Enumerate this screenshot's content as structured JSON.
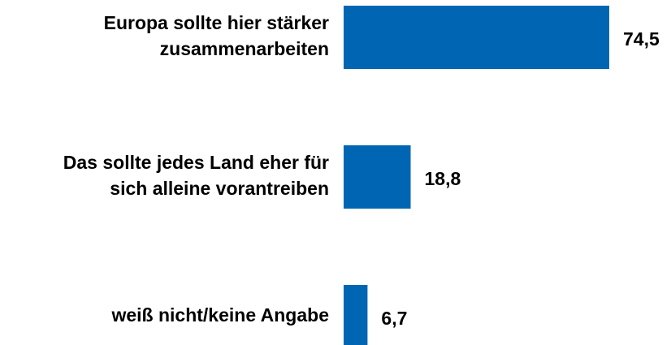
{
  "chart_data": {
    "type": "bar",
    "orientation": "horizontal",
    "categories": [
      [
        "Europa sollte hier stärker",
        "zusammenarbeiten"
      ],
      [
        "Das sollte jedes Land eher für",
        "sich alleine vorantreiben"
      ],
      [
        "weiß nicht/keine Angabe"
      ]
    ],
    "values": [
      74.5,
      18.8,
      6.7
    ],
    "value_labels": [
      "74,5",
      "18,8",
      "6,7"
    ],
    "color": "#0066b3"
  }
}
